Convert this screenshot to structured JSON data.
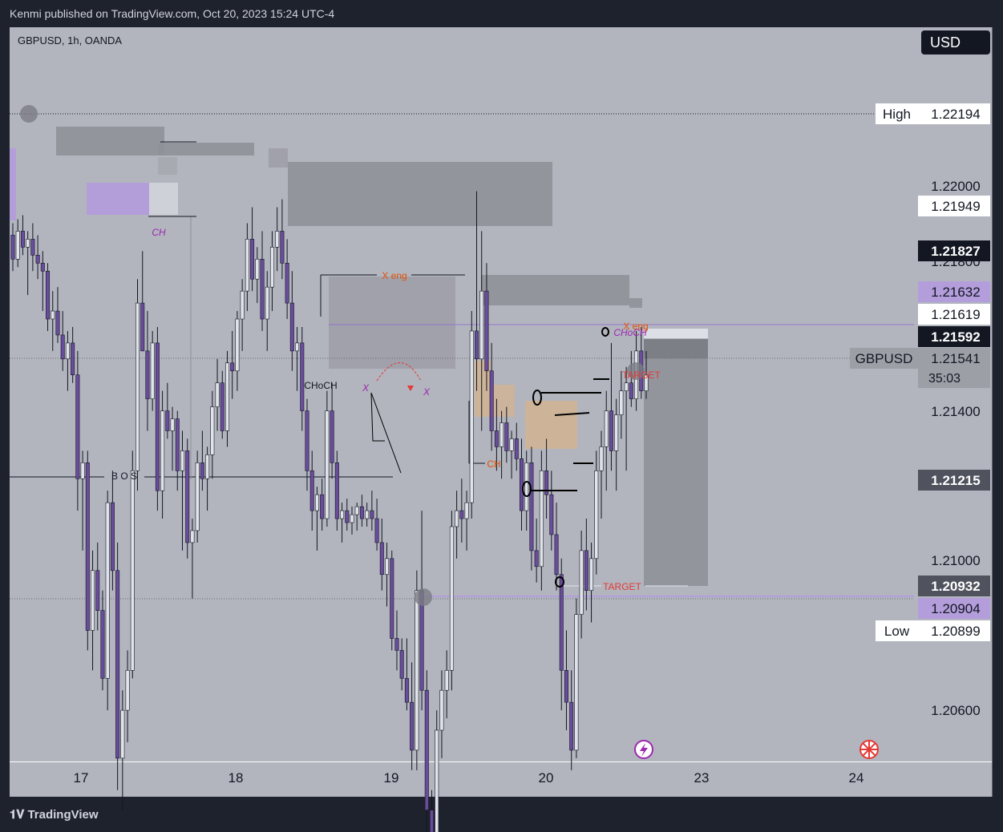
{
  "header": {
    "publisher_line": "Kenmi published on TradingView.com, Oct 20, 2023 15:24 UTC-4"
  },
  "footer": {
    "brand": "TradingView"
  },
  "symbol_line": "GBPUSD, 1h, OANDA",
  "currency_button": "USD",
  "colors": {
    "background": "#b2b5be",
    "frame": "#1e222d",
    "candle_up": "#e1e3ea",
    "candle_down": "#6a4c9c",
    "zone_gray": "#8f9199",
    "zone_purple": "#b39ddb",
    "zone_orange": "#e4b27a",
    "label_red": "#e53935",
    "label_orange": "#e65100"
  },
  "chart_data": {
    "type": "candlestick",
    "symbol": "GBPUSD",
    "timeframe": "1h",
    "broker": "OANDA",
    "ylim": [
      1.2048,
      1.224
    ],
    "yaxis_ticks": [
      "1.22000",
      "1.21800",
      "1.21400",
      "1.21000",
      "1.20600"
    ],
    "xaxis_ticks": [
      "17",
      "18",
      "19",
      "20",
      "23",
      "24"
    ],
    "price_labels": [
      {
        "name": "high",
        "label": "High",
        "value": "1.22194",
        "price": 1.22194,
        "style": "white"
      },
      {
        "name": "level-21949",
        "label": "",
        "value": "1.21949",
        "price": 1.21949,
        "style": "white"
      },
      {
        "name": "level-21827",
        "label": "",
        "value": "1.21827",
        "price": 1.21827,
        "style": "black"
      },
      {
        "name": "level-21632",
        "label": "",
        "value": "1.21632",
        "price": 1.21632,
        "style": "purple"
      },
      {
        "name": "level-21619",
        "label": "",
        "value": "1.21619",
        "price": 1.21619,
        "style": "white"
      },
      {
        "name": "level-21592",
        "label": "",
        "value": "1.21592",
        "price": 1.21592,
        "style": "black"
      },
      {
        "name": "current-price",
        "label": "GBPUSD",
        "value": "1.21541",
        "price": 1.21541,
        "style": "gray",
        "countdown": "35:03"
      },
      {
        "name": "level-21215",
        "label": "",
        "value": "1.21215",
        "price": 1.21215,
        "style": "dark"
      },
      {
        "name": "level-20932",
        "label": "",
        "value": "1.20932",
        "price": 1.20932,
        "style": "dark"
      },
      {
        "name": "level-20904",
        "label": "",
        "value": "1.20904",
        "price": 1.20904,
        "style": "purple"
      },
      {
        "name": "low",
        "label": "Low",
        "value": "1.20899",
        "price": 1.20899,
        "style": "white"
      }
    ],
    "annotations": [
      {
        "text": "B O S",
        "color": "#131722"
      },
      {
        "text": "X eng",
        "color": "#e65100"
      },
      {
        "text": "CHoCH",
        "color": "#131722"
      },
      {
        "text": "X",
        "color": "#9c27b0"
      },
      {
        "text": "X",
        "color": "#9c27b0"
      },
      {
        "text": "CH",
        "color": "#e65100"
      },
      {
        "text": "CH",
        "color": "#9c27b0"
      },
      {
        "text": "X eng",
        "color": "#e65100"
      },
      {
        "text": "CHoCH",
        "color": "#9c27b0"
      },
      {
        "text": "TARGET",
        "color": "#e53935"
      },
      {
        "text": "TARGET",
        "color": "#e53935"
      }
    ],
    "candles": [
      {
        "o": 1.2189,
        "h": 1.2192,
        "l": 1.218,
        "c": 1.2183
      },
      {
        "o": 1.2183,
        "h": 1.2193,
        "l": 1.2181,
        "c": 1.219
      },
      {
        "o": 1.219,
        "h": 1.2194,
        "l": 1.2184,
        "c": 1.2186
      },
      {
        "o": 1.2186,
        "h": 1.219,
        "l": 1.2174,
        "c": 1.2188
      },
      {
        "o": 1.2188,
        "h": 1.2192,
        "l": 1.218,
        "c": 1.2184
      },
      {
        "o": 1.2184,
        "h": 1.2189,
        "l": 1.2178,
        "c": 1.2182
      },
      {
        "o": 1.2182,
        "h": 1.2185,
        "l": 1.217,
        "c": 1.218
      },
      {
        "o": 1.218,
        "h": 1.2182,
        "l": 1.2165,
        "c": 1.2168
      },
      {
        "o": 1.2168,
        "h": 1.2175,
        "l": 1.216,
        "c": 1.217
      },
      {
        "o": 1.217,
        "h": 1.2176,
        "l": 1.2162,
        "c": 1.2164
      },
      {
        "o": 1.2164,
        "h": 1.217,
        "l": 1.2155,
        "c": 1.2158
      },
      {
        "o": 1.2158,
        "h": 1.2165,
        "l": 1.215,
        "c": 1.2162
      },
      {
        "o": 1.2162,
        "h": 1.2166,
        "l": 1.2152,
        "c": 1.2154
      },
      {
        "o": 1.2154,
        "h": 1.216,
        "l": 1.212,
        "c": 1.2128
      },
      {
        "o": 1.2128,
        "h": 1.2135,
        "l": 1.211,
        "c": 1.2132
      },
      {
        "o": 1.2132,
        "h": 1.2135,
        "l": 1.2085,
        "c": 1.209
      },
      {
        "o": 1.209,
        "h": 1.211,
        "l": 1.208,
        "c": 1.2105
      },
      {
        "o": 1.2105,
        "h": 1.2112,
        "l": 1.209,
        "c": 1.2095
      },
      {
        "o": 1.2095,
        "h": 1.21,
        "l": 1.2075,
        "c": 1.2078
      },
      {
        "o": 1.2078,
        "h": 1.2125,
        "l": 1.207,
        "c": 1.2122
      },
      {
        "o": 1.2122,
        "h": 1.213,
        "l": 1.21,
        "c": 1.2105
      },
      {
        "o": 1.2105,
        "h": 1.2112,
        "l": 1.205,
        "c": 1.2058
      },
      {
        "o": 1.2058,
        "h": 1.2075,
        "l": 1.2045,
        "c": 1.207
      },
      {
        "o": 1.207,
        "h": 1.2085,
        "l": 1.2062,
        "c": 1.208
      },
      {
        "o": 1.208,
        "h": 1.2135,
        "l": 1.2078,
        "c": 1.213
      },
      {
        "o": 1.213,
        "h": 1.2178,
        "l": 1.2125,
        "c": 1.2172
      },
      {
        "o": 1.2172,
        "h": 1.2185,
        "l": 1.216,
        "c": 1.216
      },
      {
        "o": 1.216,
        "h": 1.217,
        "l": 1.214,
        "c": 1.2148
      },
      {
        "o": 1.2148,
        "h": 1.2165,
        "l": 1.2145,
        "c": 1.2162
      },
      {
        "o": 1.2162,
        "h": 1.2166,
        "l": 1.212,
        "c": 1.2125
      },
      {
        "o": 1.2125,
        "h": 1.215,
        "l": 1.2118,
        "c": 1.2145
      },
      {
        "o": 1.2145,
        "h": 1.2152,
        "l": 1.2138,
        "c": 1.214
      },
      {
        "o": 1.214,
        "h": 1.2146,
        "l": 1.213,
        "c": 1.2143
      },
      {
        "o": 1.2143,
        "h": 1.2145,
        "l": 1.2125,
        "c": 1.213
      },
      {
        "o": 1.213,
        "h": 1.214,
        "l": 1.211,
        "c": 1.2135
      },
      {
        "o": 1.2135,
        "h": 1.2138,
        "l": 1.2108,
        "c": 1.2112
      },
      {
        "o": 1.2112,
        "h": 1.2118,
        "l": 1.2098,
        "c": 1.2115
      },
      {
        "o": 1.2115,
        "h": 1.2135,
        "l": 1.2112,
        "c": 1.2132
      },
      {
        "o": 1.2132,
        "h": 1.214,
        "l": 1.2125,
        "c": 1.2128
      },
      {
        "o": 1.2128,
        "h": 1.2136,
        "l": 1.212,
        "c": 1.2134
      },
      {
        "o": 1.2134,
        "h": 1.215,
        "l": 1.2128,
        "c": 1.2146
      },
      {
        "o": 1.2146,
        "h": 1.2158,
        "l": 1.214,
        "c": 1.2152
      },
      {
        "o": 1.2152,
        "h": 1.2155,
        "l": 1.2138,
        "c": 1.214
      },
      {
        "o": 1.214,
        "h": 1.216,
        "l": 1.2136,
        "c": 1.2157
      },
      {
        "o": 1.2157,
        "h": 1.2165,
        "l": 1.2148,
        "c": 1.2155
      },
      {
        "o": 1.2155,
        "h": 1.217,
        "l": 1.215,
        "c": 1.2168
      },
      {
        "o": 1.2168,
        "h": 1.2178,
        "l": 1.216,
        "c": 1.2175
      },
      {
        "o": 1.2175,
        "h": 1.2192,
        "l": 1.217,
        "c": 1.2188
      },
      {
        "o": 1.2188,
        "h": 1.2196,
        "l": 1.2175,
        "c": 1.2178
      },
      {
        "o": 1.2178,
        "h": 1.2186,
        "l": 1.2172,
        "c": 1.2183
      },
      {
        "o": 1.2183,
        "h": 1.219,
        "l": 1.2165,
        "c": 1.2168
      },
      {
        "o": 1.2168,
        "h": 1.218,
        "l": 1.216,
        "c": 1.2176
      },
      {
        "o": 1.2176,
        "h": 1.219,
        "l": 1.217,
        "c": 1.2186
      },
      {
        "o": 1.2186,
        "h": 1.2196,
        "l": 1.218,
        "c": 1.219
      },
      {
        "o": 1.219,
        "h": 1.2198,
        "l": 1.2178,
        "c": 1.2182
      },
      {
        "o": 1.2182,
        "h": 1.2188,
        "l": 1.2168,
        "c": 1.2172
      },
      {
        "o": 1.2172,
        "h": 1.218,
        "l": 1.2155,
        "c": 1.216
      },
      {
        "o": 1.216,
        "h": 1.2166,
        "l": 1.215,
        "c": 1.2162
      },
      {
        "o": 1.2162,
        "h": 1.2166,
        "l": 1.214,
        "c": 1.2145
      },
      {
        "o": 1.2145,
        "h": 1.2148,
        "l": 1.2125,
        "c": 1.213
      },
      {
        "o": 1.213,
        "h": 1.2135,
        "l": 1.2115,
        "c": 1.212
      },
      {
        "o": 1.212,
        "h": 1.2126,
        "l": 1.211,
        "c": 1.2124
      },
      {
        "o": 1.2124,
        "h": 1.2128,
        "l": 1.2115,
        "c": 1.2118
      },
      {
        "o": 1.2118,
        "h": 1.215,
        "l": 1.2116,
        "c": 1.2145
      },
      {
        "o": 1.2145,
        "h": 1.2152,
        "l": 1.2128,
        "c": 1.2132
      },
      {
        "o": 1.2132,
        "h": 1.2135,
        "l": 1.2115,
        "c": 1.2118
      },
      {
        "o": 1.2118,
        "h": 1.2122,
        "l": 1.2112,
        "c": 1.212
      },
      {
        "o": 1.212,
        "h": 1.2123,
        "l": 1.2115,
        "c": 1.2117
      },
      {
        "o": 1.2117,
        "h": 1.2121,
        "l": 1.2114,
        "c": 1.2119
      },
      {
        "o": 1.2119,
        "h": 1.2122,
        "l": 1.2115,
        "c": 1.2121
      },
      {
        "o": 1.2121,
        "h": 1.2124,
        "l": 1.2116,
        "c": 1.2118
      },
      {
        "o": 1.2118,
        "h": 1.2122,
        "l": 1.2116,
        "c": 1.212
      },
      {
        "o": 1.212,
        "h": 1.2125,
        "l": 1.2115,
        "c": 1.2118
      },
      {
        "o": 1.2118,
        "h": 1.2123,
        "l": 1.211,
        "c": 1.2112
      },
      {
        "o": 1.2112,
        "h": 1.2118,
        "l": 1.21,
        "c": 1.2104
      },
      {
        "o": 1.2104,
        "h": 1.2112,
        "l": 1.2096,
        "c": 1.2108
      },
      {
        "o": 1.2108,
        "h": 1.211,
        "l": 1.2085,
        "c": 1.2088
      },
      {
        "o": 1.2088,
        "h": 1.2095,
        "l": 1.208,
        "c": 1.2085
      },
      {
        "o": 1.2085,
        "h": 1.2088,
        "l": 1.2075,
        "c": 1.2078
      },
      {
        "o": 1.2078,
        "h": 1.2088,
        "l": 1.207,
        "c": 1.2072
      },
      {
        "o": 1.2072,
        "h": 1.2082,
        "l": 1.2055,
        "c": 1.206
      },
      {
        "o": 1.206,
        "h": 1.2105,
        "l": 1.2055,
        "c": 1.21
      },
      {
        "o": 1.21,
        "h": 1.212,
        "l": 1.207,
        "c": 1.2075
      },
      {
        "o": 1.2075,
        "h": 1.208,
        "l": 1.2035,
        "c": 1.2045
      },
      {
        "o": 1.2045,
        "h": 1.205,
        "l": 1.2026,
        "c": 1.2038
      },
      {
        "o": 1.2038,
        "h": 1.207,
        "l": 1.203,
        "c": 1.2065
      },
      {
        "o": 1.2065,
        "h": 1.208,
        "l": 1.2058,
        "c": 1.2075
      },
      {
        "o": 1.2075,
        "h": 1.2085,
        "l": 1.2068,
        "c": 1.208
      },
      {
        "o": 1.208,
        "h": 1.212,
        "l": 1.2075,
        "c": 1.2116
      },
      {
        "o": 1.2116,
        "h": 1.2125,
        "l": 1.2108,
        "c": 1.212
      },
      {
        "o": 1.212,
        "h": 1.2128,
        "l": 1.2112,
        "c": 1.2118
      },
      {
        "o": 1.2118,
        "h": 1.2125,
        "l": 1.211,
        "c": 1.2122
      },
      {
        "o": 1.2122,
        "h": 1.217,
        "l": 1.2118,
        "c": 1.2165
      },
      {
        "o": 1.2165,
        "h": 1.22,
        "l": 1.215,
        "c": 1.2158
      },
      {
        "o": 1.2158,
        "h": 1.219,
        "l": 1.214,
        "c": 1.2175
      },
      {
        "o": 1.2175,
        "h": 1.2182,
        "l": 1.215,
        "c": 1.2155
      },
      {
        "o": 1.2155,
        "h": 1.2162,
        "l": 1.2135,
        "c": 1.214
      },
      {
        "o": 1.214,
        "h": 1.2148,
        "l": 1.213,
        "c": 1.2136
      },
      {
        "o": 1.2136,
        "h": 1.2145,
        "l": 1.2128,
        "c": 1.2142
      },
      {
        "o": 1.2142,
        "h": 1.2146,
        "l": 1.2132,
        "c": 1.2135
      },
      {
        "o": 1.2135,
        "h": 1.214,
        "l": 1.2128,
        "c": 1.2138
      },
      {
        "o": 1.2138,
        "h": 1.2142,
        "l": 1.213,
        "c": 1.2133
      },
      {
        "o": 1.2133,
        "h": 1.2138,
        "l": 1.2115,
        "c": 1.212
      },
      {
        "o": 1.212,
        "h": 1.2135,
        "l": 1.2115,
        "c": 1.2132
      },
      {
        "o": 1.2132,
        "h": 1.2136,
        "l": 1.2105,
        "c": 1.211
      },
      {
        "o": 1.211,
        "h": 1.2118,
        "l": 1.2102,
        "c": 1.2106
      },
      {
        "o": 1.2106,
        "h": 1.2135,
        "l": 1.21,
        "c": 1.213
      },
      {
        "o": 1.213,
        "h": 1.2138,
        "l": 1.2118,
        "c": 1.2124
      },
      {
        "o": 1.2124,
        "h": 1.213,
        "l": 1.211,
        "c": 1.2114
      },
      {
        "o": 1.2114,
        "h": 1.2122,
        "l": 1.21,
        "c": 1.2104
      },
      {
        "o": 1.2104,
        "h": 1.2108,
        "l": 1.207,
        "c": 1.208
      },
      {
        "o": 1.208,
        "h": 1.209,
        "l": 1.2065,
        "c": 1.2072
      },
      {
        "o": 1.2072,
        "h": 1.208,
        "l": 1.2055,
        "c": 1.206
      },
      {
        "o": 1.206,
        "h": 1.2098,
        "l": 1.2058,
        "c": 1.2094
      },
      {
        "o": 1.2094,
        "h": 1.2115,
        "l": 1.2088,
        "c": 1.211
      },
      {
        "o": 1.211,
        "h": 1.2118,
        "l": 1.2095,
        "c": 1.21
      },
      {
        "o": 1.21,
        "h": 1.2112,
        "l": 1.2092,
        "c": 1.2108
      },
      {
        "o": 1.2108,
        "h": 1.2135,
        "l": 1.2104,
        "c": 1.213
      },
      {
        "o": 1.213,
        "h": 1.214,
        "l": 1.2118,
        "c": 1.2136
      },
      {
        "o": 1.2136,
        "h": 1.215,
        "l": 1.2125,
        "c": 1.2145
      },
      {
        "o": 1.2145,
        "h": 1.2162,
        "l": 1.213,
        "c": 1.2135
      },
      {
        "o": 1.2135,
        "h": 1.2148,
        "l": 1.2125,
        "c": 1.2144
      },
      {
        "o": 1.2144,
        "h": 1.2155,
        "l": 1.2138,
        "c": 1.215
      },
      {
        "o": 1.215,
        "h": 1.2156,
        "l": 1.213,
        "c": 1.2152
      },
      {
        "o": 1.2152,
        "h": 1.216,
        "l": 1.2146,
        "c": 1.2148
      },
      {
        "o": 1.2148,
        "h": 1.2165,
        "l": 1.2145,
        "c": 1.216
      },
      {
        "o": 1.216,
        "h": 1.2166,
        "l": 1.2148,
        "c": 1.215
      },
      {
        "o": 1.215,
        "h": 1.216,
        "l": 1.2148,
        "c": 1.2154
      }
    ]
  }
}
